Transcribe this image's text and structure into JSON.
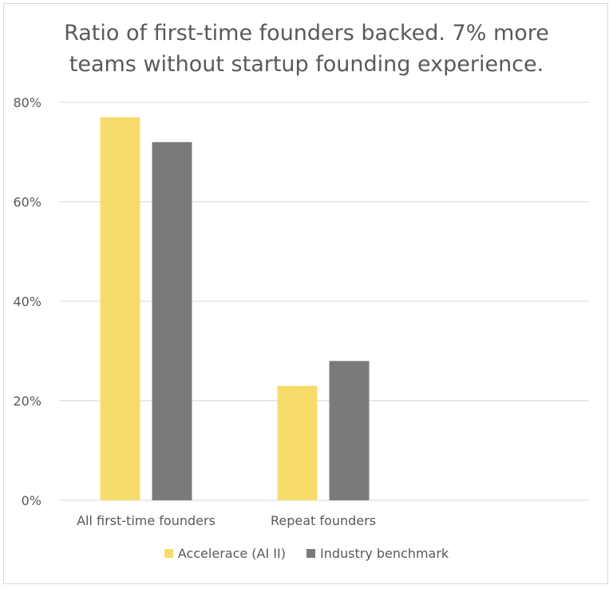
{
  "chart_data": {
    "type": "bar",
    "title": "Ratio of first-time founders backed. 7% more\nteams without startup founding experience.",
    "categories": [
      "All first-time founders",
      "Repeat founders"
    ],
    "series": [
      {
        "name": "Accelerace (AI II)",
        "values": [
          77,
          23
        ],
        "color": "#f7dc6b"
      },
      {
        "name": "Industry benchmark",
        "values": [
          72,
          28
        ],
        "color": "#7a7a7a"
      }
    ],
    "ylim": [
      0,
      80
    ],
    "yticks": [
      "0%",
      "20%",
      "40%",
      "60%",
      "80%"
    ],
    "ytick_values": [
      0,
      20,
      40,
      60,
      80
    ],
    "grid": true,
    "legend_position": "bottom"
  }
}
